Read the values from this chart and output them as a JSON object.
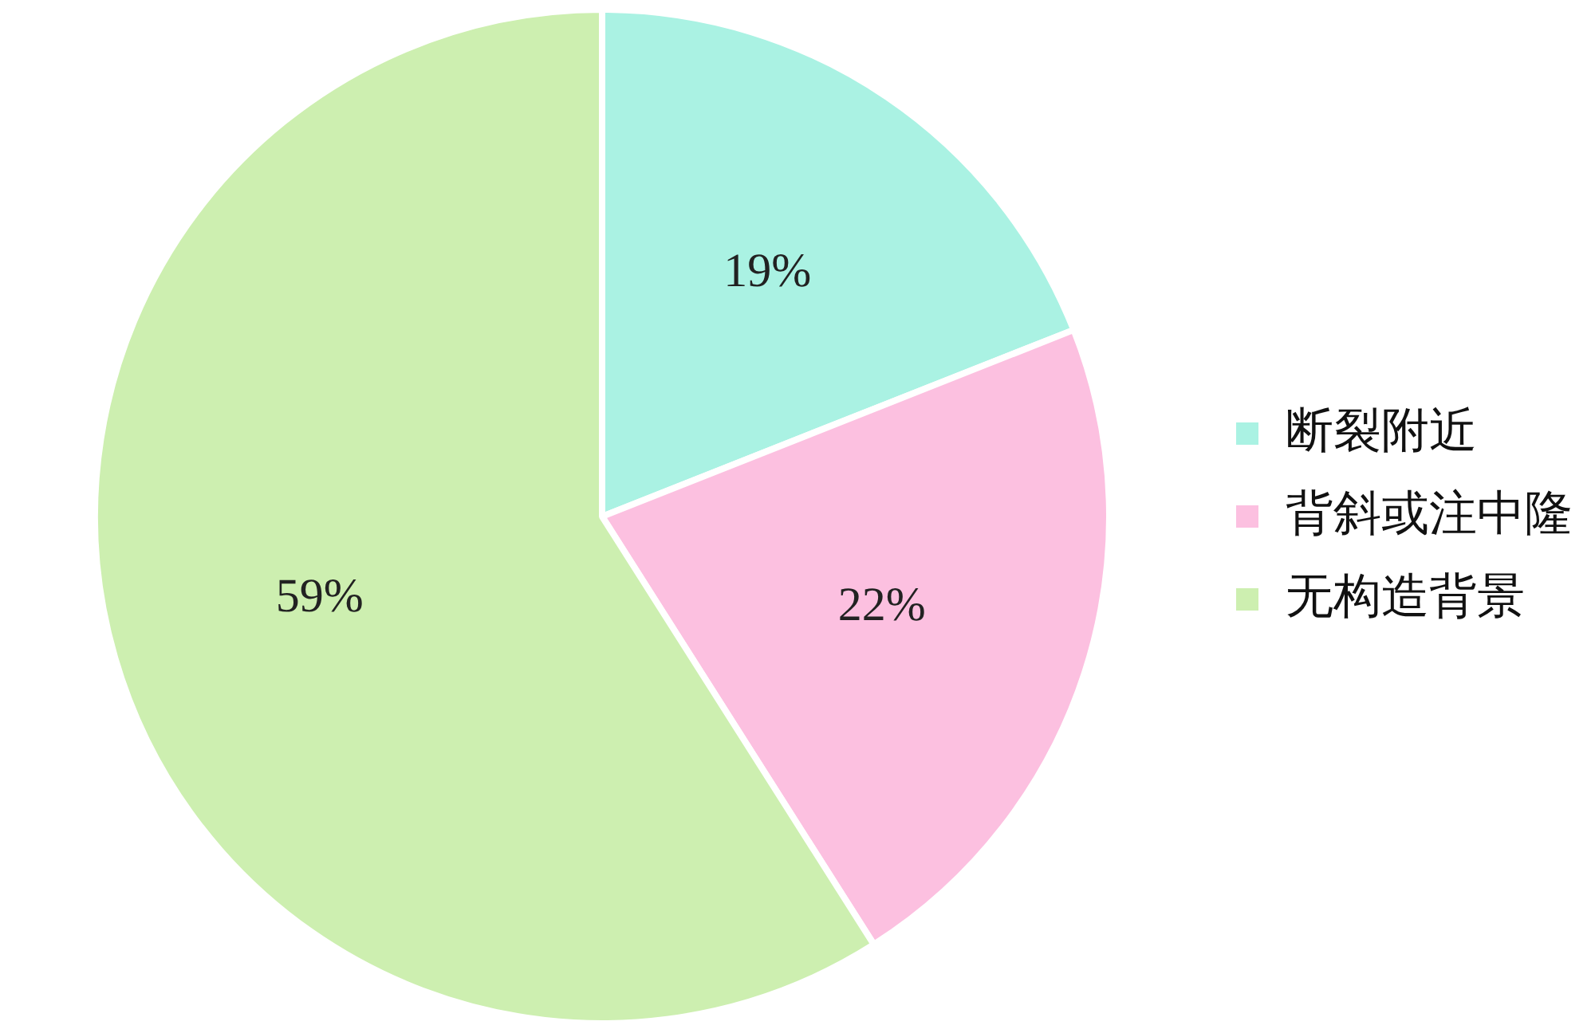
{
  "chart_data": {
    "type": "pie",
    "categories": [
      "断裂附近",
      "背斜或注中隆",
      "无构造背景"
    ],
    "values": [
      19,
      22,
      59
    ],
    "colors": [
      "#aaf2e3",
      "#fcc0e0",
      "#cdefb0"
    ],
    "value_labels": [
      "19%",
      "22%",
      "59%"
    ],
    "legend": "right"
  }
}
